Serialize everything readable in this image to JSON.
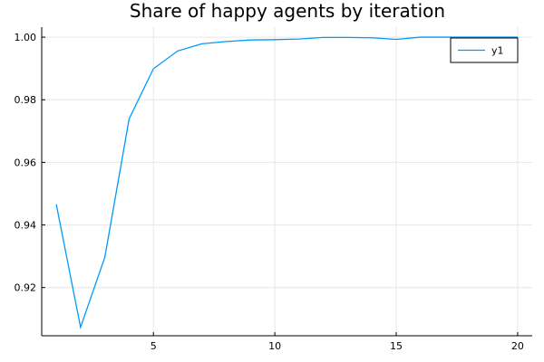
{
  "chart_data": {
    "type": "line",
    "title": "Share of happy agents by iteration",
    "xlabel": "",
    "ylabel": "",
    "xlim": [
      0.4,
      20.6
    ],
    "ylim": [
      0.9046,
      1.0032
    ],
    "x_ticks": [
      5,
      10,
      15,
      20
    ],
    "x_tick_labels": [
      "5",
      "10",
      "15",
      "20"
    ],
    "y_ticks": [
      0.92,
      0.94,
      0.96,
      0.98,
      1.0
    ],
    "y_tick_labels": [
      "0.92",
      "0.94",
      "0.96",
      "0.98",
      "1.00"
    ],
    "grid": true,
    "legend": {
      "position": "top-right",
      "entries": [
        "y1"
      ]
    },
    "series": [
      {
        "name": "y1",
        "color": "#009af9",
        "x": [
          1,
          2,
          3,
          4,
          5,
          6,
          7,
          8,
          9,
          10,
          11,
          12,
          13,
          14,
          15,
          16,
          17,
          18,
          19,
          20
        ],
        "values": [
          0.9466,
          0.9073,
          0.9297,
          0.9739,
          0.9899,
          0.9956,
          0.9979,
          0.9986,
          0.9991,
          0.9992,
          0.9994,
          0.9999,
          0.9999,
          0.9998,
          0.9993,
          1.0,
          1.0,
          1.0,
          1.0,
          1.0
        ]
      }
    ]
  }
}
